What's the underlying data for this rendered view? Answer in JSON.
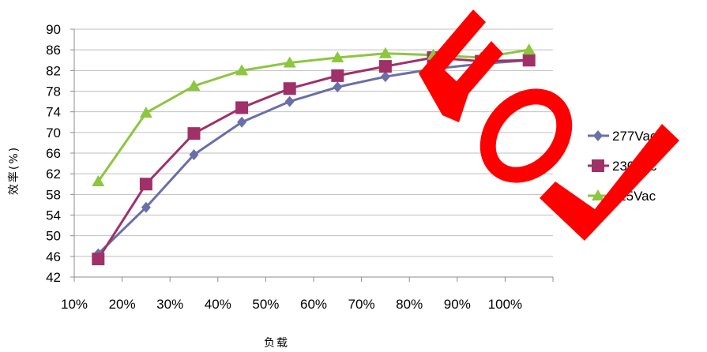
{
  "chart_data": {
    "type": "line",
    "title": "",
    "xlabel": "负载",
    "ylabel": "效率(%)",
    "categories": [
      "10%",
      "20%",
      "30%",
      "40%",
      "50%",
      "60%",
      "70%",
      "80%",
      "90%",
      "100%"
    ],
    "yticks": [
      42,
      46,
      50,
      54,
      58,
      62,
      66,
      70,
      74,
      78,
      82,
      86,
      90
    ],
    "ylim": [
      42,
      90
    ],
    "grid": true,
    "legend": "right",
    "series": [
      {
        "name": "277Vac",
        "marker": "diamond",
        "color": "#6a6fa8",
        "values": [
          46.5,
          55.5,
          65.7,
          72.0,
          76.0,
          78.8,
          80.8,
          82.3,
          83.3,
          84.0
        ]
      },
      {
        "name": "230Vac",
        "marker": "square",
        "color": "#a03068",
        "values": [
          45.5,
          60.0,
          69.8,
          74.8,
          78.5,
          81.0,
          82.8,
          84.5,
          83.8,
          84.0
        ]
      },
      {
        "name": "115Vac",
        "marker": "triangle",
        "color": "#8dc63f",
        "values": [
          60.5,
          73.8,
          79.0,
          82.0,
          83.5,
          84.5,
          85.3,
          85.0,
          84.5,
          86.0
        ]
      }
    ]
  },
  "watermark": {
    "color": "#ff0000"
  }
}
